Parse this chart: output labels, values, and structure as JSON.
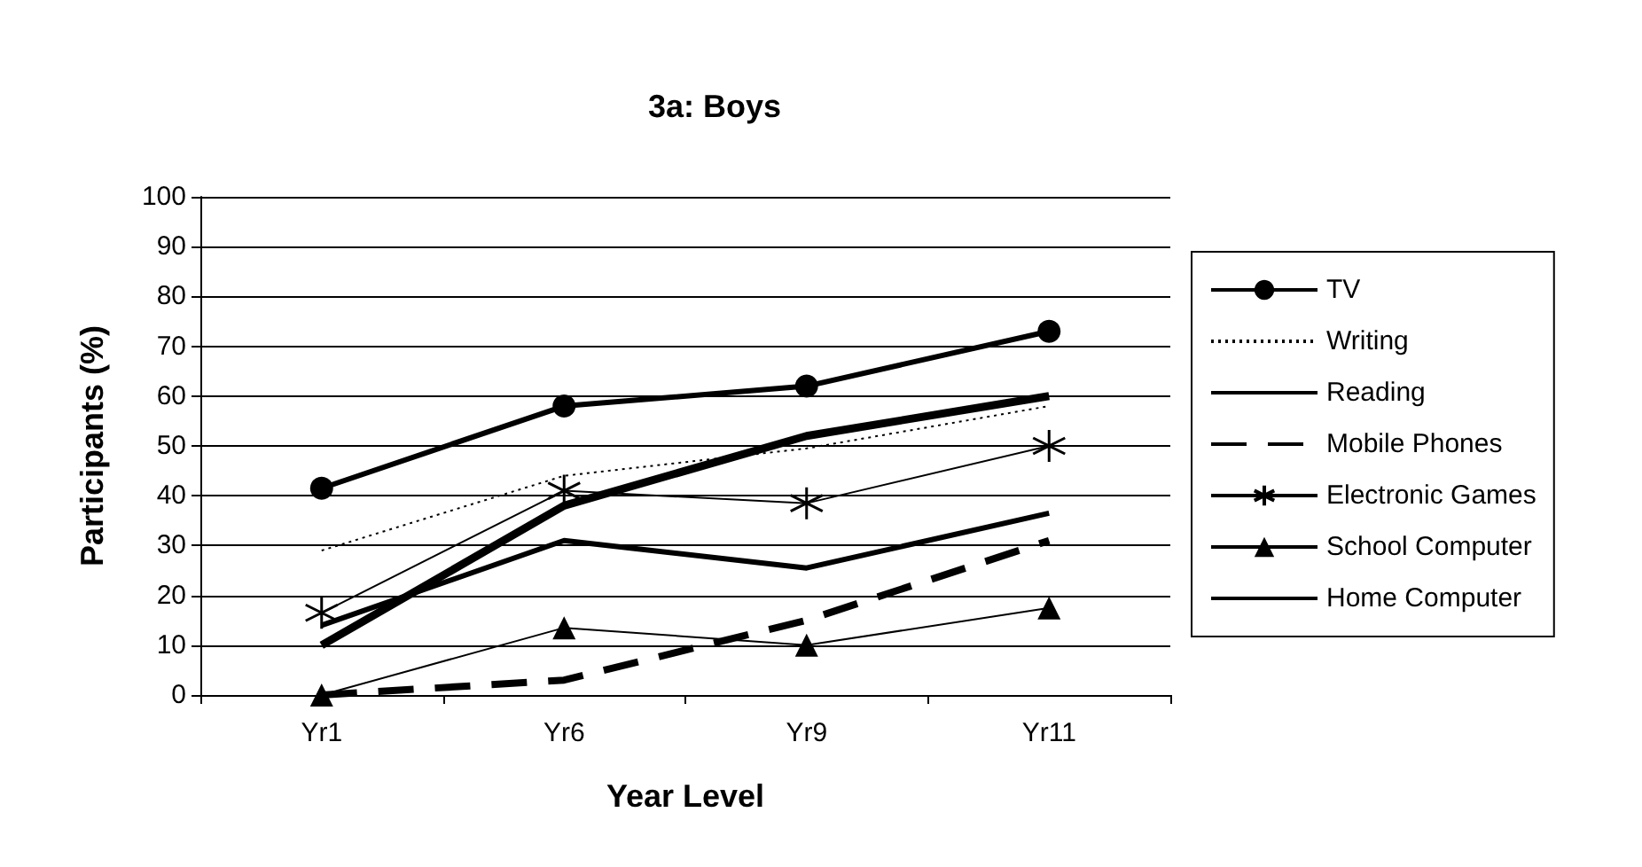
{
  "chart_data": {
    "type": "line",
    "title": "3a: Boys",
    "xlabel": "Year Level",
    "ylabel": "Participants (%)",
    "categories": [
      "Yr1",
      "Yr6",
      "Yr9",
      "Yr11"
    ],
    "series": [
      {
        "name": "TV",
        "color": "#000000",
        "marker": "circle",
        "line_style": "solid",
        "values": [
          41.5,
          58,
          62,
          73
        ]
      },
      {
        "name": "Writing",
        "color": "#000000",
        "marker": "none",
        "line_style": "dotted",
        "values": [
          29,
          44,
          49.5,
          58
        ]
      },
      {
        "name": "Reading",
        "color": "#000000",
        "marker": "none",
        "line_style": "solid",
        "values": [
          14,
          31,
          25.5,
          36.5
        ]
      },
      {
        "name": "Mobile Phones",
        "color": "#000000",
        "marker": "none",
        "line_style": "dashed",
        "values": [
          0,
          3,
          15,
          31
        ]
      },
      {
        "name": "Electronic Games",
        "color": "#000000",
        "marker": "cross",
        "line_style": "solid",
        "values": [
          16.5,
          41,
          38.5,
          50
        ]
      },
      {
        "name": "School Computer",
        "color": "#000000",
        "marker": "triangle",
        "line_style": "solid",
        "values": [
          0,
          13.5,
          10,
          17.5
        ]
      },
      {
        "name": "Home Computer",
        "color": "#000000",
        "marker": "none",
        "line_style": "solid",
        "values": [
          10,
          38,
          52,
          60
        ]
      }
    ],
    "ylim": [
      0,
      100
    ],
    "yticks": [
      0,
      10,
      20,
      30,
      40,
      50,
      60,
      70,
      80,
      90,
      100
    ],
    "grid": "y",
    "legend": "right"
  }
}
